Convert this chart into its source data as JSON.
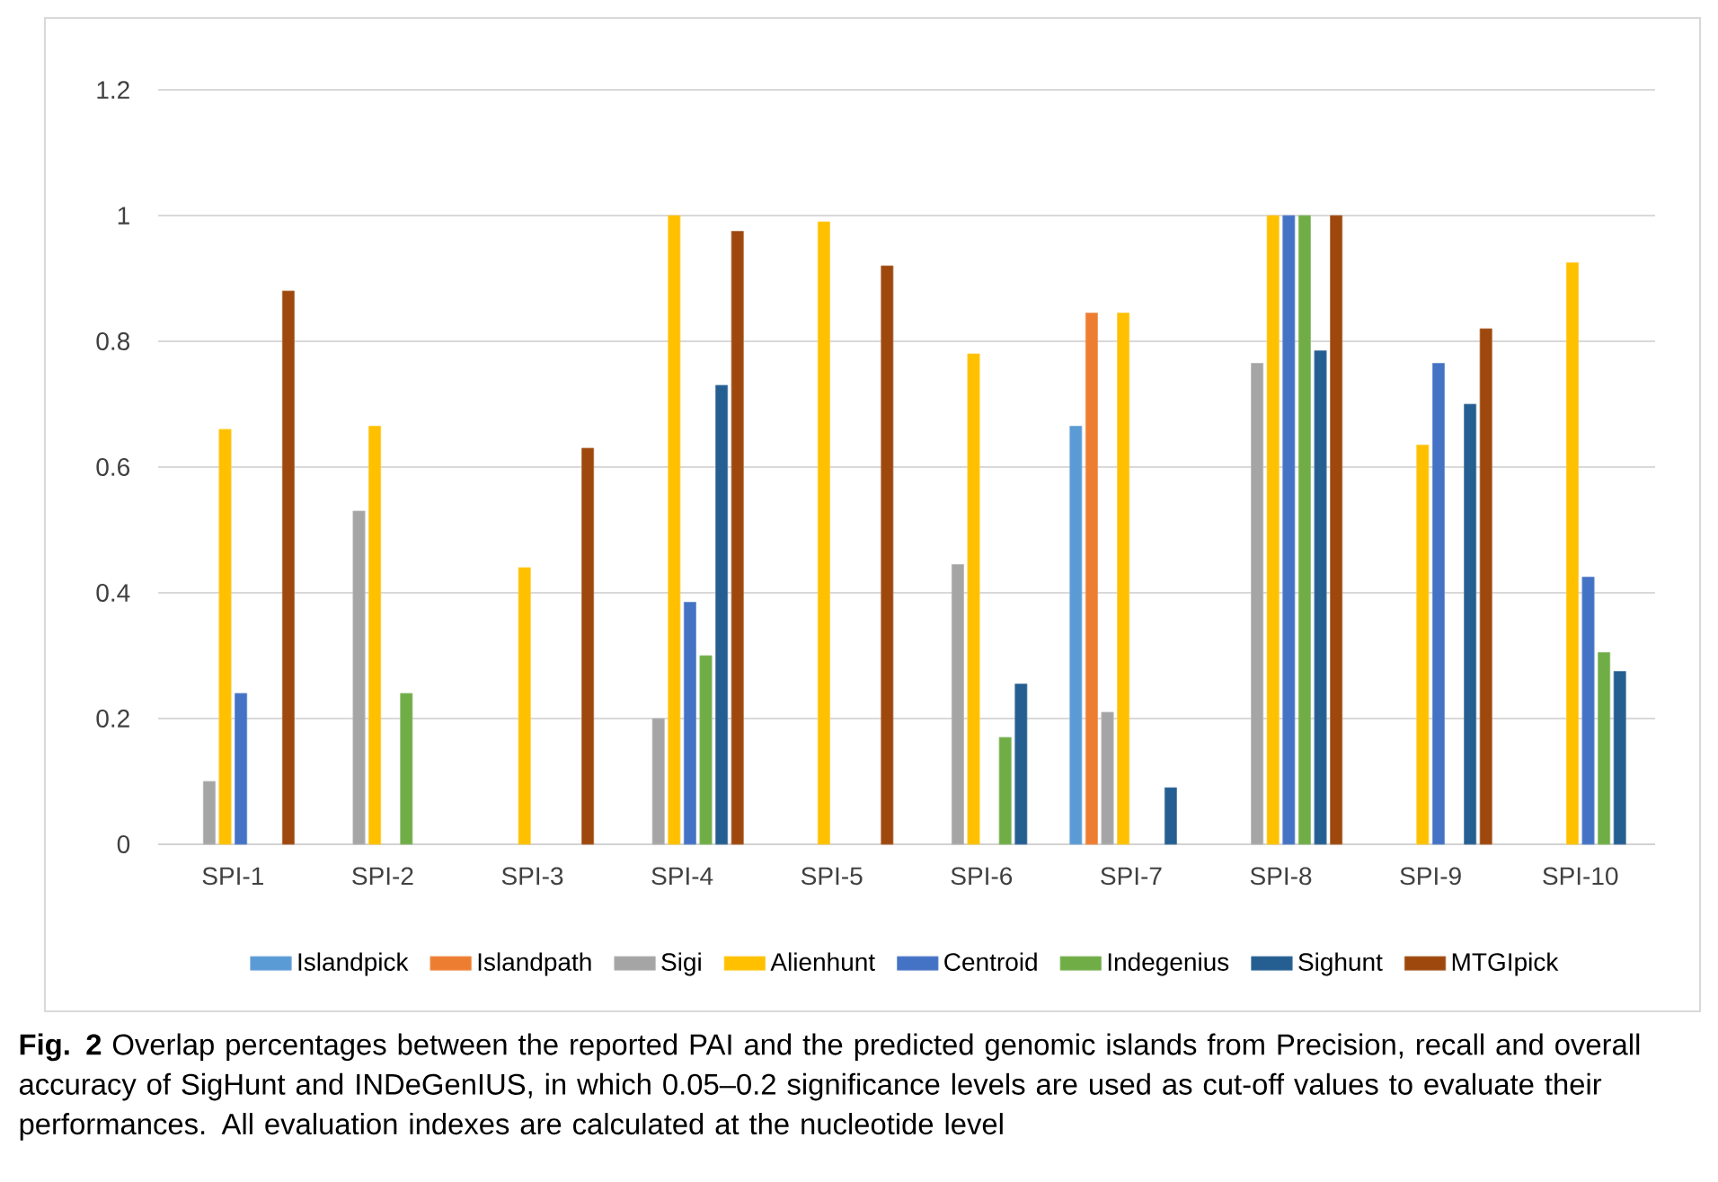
{
  "chart_data": {
    "type": "bar",
    "categories": [
      "SPI-1",
      "SPI-2",
      "SPI-3",
      "SPI-4",
      "SPI-5",
      "SPI-6",
      "SPI-7",
      "SPI-8",
      "SPI-9",
      "SPI-10"
    ],
    "series": [
      {
        "name": "Islandpick",
        "color": "#5b9bd5",
        "values": [
          null,
          null,
          null,
          null,
          null,
          null,
          0.665,
          null,
          null,
          null
        ]
      },
      {
        "name": "Islandpath",
        "color": "#ed7d31",
        "values": [
          null,
          null,
          null,
          null,
          null,
          null,
          0.845,
          null,
          null,
          null
        ]
      },
      {
        "name": "Sigi",
        "color": "#a5a5a5",
        "values": [
          0.1,
          0.53,
          null,
          0.2,
          null,
          0.445,
          0.21,
          0.765,
          null,
          null
        ]
      },
      {
        "name": "Alienhunt",
        "color": "#ffc000",
        "values": [
          0.66,
          0.665,
          0.44,
          1.0,
          0.99,
          0.78,
          0.845,
          1.0,
          0.635,
          0.925
        ]
      },
      {
        "name": "Centroid",
        "color": "#4472c4",
        "values": [
          0.24,
          null,
          null,
          0.385,
          null,
          null,
          null,
          1.0,
          0.765,
          0.425
        ]
      },
      {
        "name": "Indegenius",
        "color": "#70ad47",
        "values": [
          null,
          0.24,
          null,
          0.3,
          null,
          0.17,
          null,
          1.0,
          null,
          0.305
        ]
      },
      {
        "name": "Sighunt",
        "color": "#255e91",
        "values": [
          null,
          null,
          null,
          0.73,
          null,
          0.255,
          0.09,
          0.785,
          0.7,
          0.275
        ]
      },
      {
        "name": "MTGIpick",
        "color": "#9e480e",
        "values": [
          0.88,
          null,
          0.63,
          0.975,
          0.92,
          null,
          null,
          1.0,
          0.82,
          null
        ]
      }
    ],
    "ylim": [
      0,
      1.2
    ],
    "yticks": [
      0,
      0.2,
      0.4,
      0.6,
      0.8,
      1,
      1.2
    ],
    "grid": "y",
    "legend": "bottom",
    "annotations": [
      "**Fig. 2** Overlap percentages between the reported PAI and the predicted genomic islands from Precision, recall and overall accuracy of SigHunt and INDeGenIUS, in which 0.05–0.2 significance levels are used as cut-off values to evaluate their performances. All evaluation indexes are calculated at the nucleotide level"
    ]
  }
}
